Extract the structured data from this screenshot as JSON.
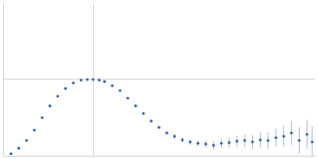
{
  "chart_data": {
    "type": "scatter",
    "color": "#3a67b8",
    "marker": "circle",
    "grid": true,
    "tick_labels": false,
    "xlim": [
      0,
      6
    ],
    "ylim": [
      0,
      2.2
    ],
    "xticks": [
      1.732
    ],
    "yticks": [
      1.104
    ],
    "x": [
      0.15,
      0.3,
      0.45,
      0.6,
      0.75,
      0.9,
      1.05,
      1.2,
      1.35,
      1.5,
      1.62,
      1.73,
      1.85,
      1.95,
      2.1,
      2.25,
      2.4,
      2.55,
      2.7,
      2.85,
      3.0,
      3.15,
      3.3,
      3.45,
      3.6,
      3.75,
      3.9,
      4.05,
      4.2,
      4.35,
      4.5,
      4.65,
      4.8,
      4.95,
      5.1,
      5.25,
      5.4,
      5.55,
      5.7,
      5.85,
      5.95
    ],
    "values": [
      0.03,
      0.11,
      0.22,
      0.37,
      0.55,
      0.72,
      0.86,
      0.97,
      1.05,
      1.09,
      1.1,
      1.1,
      1.09,
      1.07,
      1.01,
      0.94,
      0.83,
      0.72,
      0.61,
      0.5,
      0.41,
      0.33,
      0.28,
      0.23,
      0.2,
      0.18,
      0.17,
      0.15,
      0.18,
      0.19,
      0.21,
      0.22,
      0.2,
      0.23,
      0.22,
      0.26,
      0.28,
      0.33,
      0.22,
      0.31,
      0.2
    ],
    "error": [
      0.005,
      0.005,
      0.005,
      0.005,
      0.005,
      0.006,
      0.006,
      0.007,
      0.007,
      0.008,
      0.008,
      0.009,
      0.01,
      0.01,
      0.012,
      0.013,
      0.015,
      0.017,
      0.02,
      0.022,
      0.025,
      0.03,
      0.035,
      0.04,
      0.045,
      0.05,
      0.055,
      0.06,
      0.065,
      0.07,
      0.08,
      0.09,
      0.1,
      0.11,
      0.12,
      0.13,
      0.15,
      0.17,
      0.19,
      0.21,
      0.23
    ]
  }
}
